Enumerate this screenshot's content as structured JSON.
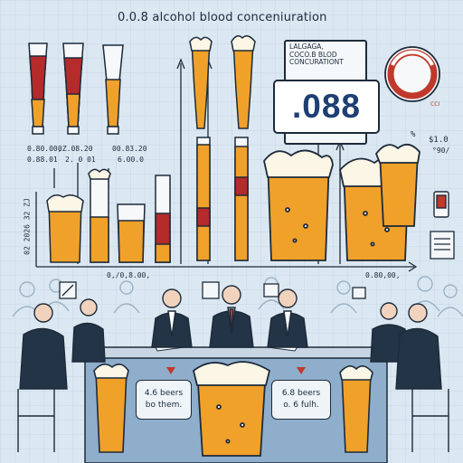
{
  "title": "0.0.8 alcohol blood conceniuration",
  "panel": {
    "line1": "LALGAGA,",
    "line2": "COCO.B BLOD",
    "line3": "CONCURATIONT"
  },
  "bac_value": ".088",
  "left_labels": {
    "l1": "0.80.00,",
    "l2": "0.88.01",
    "l3": "0Z.08.20",
    "l4": "2. 0 01",
    "l5": "00.83.20",
    "l6": "6.00.0"
  },
  "right_labels": {
    "pct": "%",
    "val1": "$1.0",
    "val2": "°90/",
    "seal_text": "CCI"
  },
  "axis": {
    "y_label": "02 2026 32 ZJ",
    "x_label_left": "0,/0,8.00,",
    "x_label_right": "0.80,00,"
  },
  "callout_left": {
    "line1": "4.6 beers",
    "line2": "bo them."
  },
  "callout_right": {
    "line1": "6.8 beers",
    "line2": "o. 6 fulh."
  },
  "colors": {
    "background": "#dbe8f2",
    "beer": "#f0a12a",
    "red_liquid": "#b52a2a",
    "foam": "#fbf6e6",
    "outline": "#1d2a3a",
    "value_text": "#1e3f73"
  }
}
